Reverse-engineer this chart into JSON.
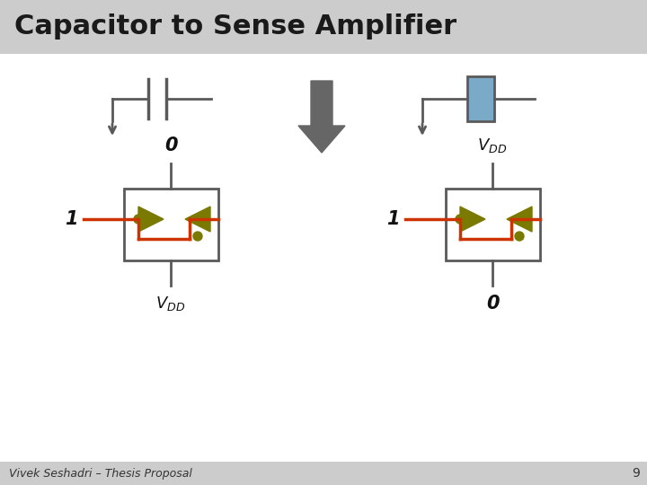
{
  "title": "Capacitor to Sense Amplifier",
  "title_bg": "#cccccc",
  "bg_color": "#ffffff",
  "footer_text": "Vivek Seshadri – Thesis Proposal",
  "page_number": "9",
  "footer_bg": "#cccccc",
  "line_color": "#5a5a5a",
  "red_color": "#cc3300",
  "olive_color": "#7a7a00",
  "blue_color": "#7aaac8",
  "gray_arrow": "#666666",
  "title_fontsize": 22,
  "footer_fontsize": 9,
  "page_fontsize": 10
}
